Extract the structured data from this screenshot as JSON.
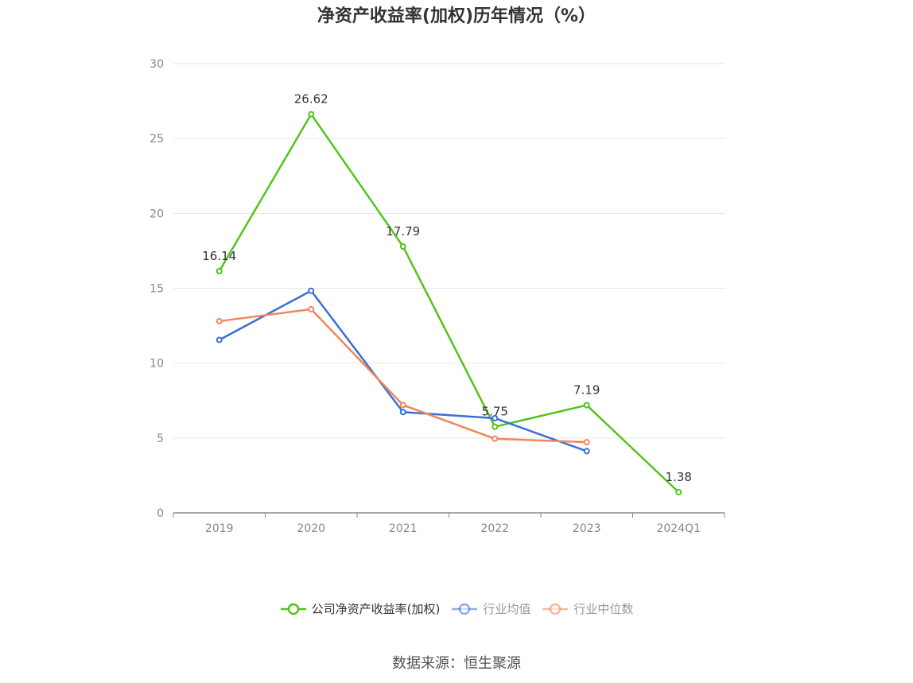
{
  "chart_data": {
    "type": "line",
    "title": "净资产收益率(加权)历年情况（%）",
    "categories": [
      "2019",
      "2020",
      "2021",
      "2022",
      "2023",
      "2024Q1"
    ],
    "ylim": [
      0,
      30
    ],
    "yticks": [
      "0",
      "5",
      "10",
      "15",
      "20",
      "25",
      "30"
    ],
    "grid": true,
    "legend_position": "bottom-center",
    "series": [
      {
        "name": "公司净资产收益率(加权)",
        "color": "#52c41a",
        "label_color": "#333333",
        "values": [
          16.14,
          26.62,
          17.79,
          5.75,
          7.19,
          1.38
        ],
        "labels": [
          "16.14",
          "26.62",
          "17.79",
          "5.75",
          "7.19",
          "1.38"
        ]
      },
      {
        "name": "行业均值",
        "color": "#3a6fd8",
        "label_color": "#999999",
        "values": [
          11.55,
          14.83,
          6.73,
          6.32,
          4.12,
          null
        ]
      },
      {
        "name": "行业中位数",
        "color": "#f0875a",
        "label_color": "#999999",
        "values": [
          12.8,
          13.6,
          7.2,
          4.95,
          4.72,
          null
        ]
      }
    ],
    "source": "数据来源：恒生聚源"
  }
}
